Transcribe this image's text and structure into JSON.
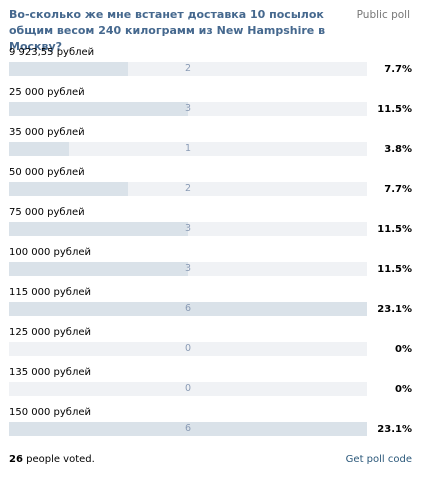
{
  "poll": {
    "question": "Во-сколько же мне встанет доставка 10 посылок общим весом 240 килограмм из New Hampshire в Москву?",
    "type_label": "Public poll",
    "options": [
      {
        "label": "9 923,55 рублей",
        "votes": "2",
        "percent": "7.7%",
        "fraction": 0.333
      },
      {
        "label": "25 000 рублей",
        "votes": "3",
        "percent": "11.5%",
        "fraction": 0.5
      },
      {
        "label": "35 000 рублей",
        "votes": "1",
        "percent": "3.8%",
        "fraction": 0.167
      },
      {
        "label": "50 000 рублей",
        "votes": "2",
        "percent": "7.7%",
        "fraction": 0.333
      },
      {
        "label": "75 000 рублей",
        "votes": "3",
        "percent": "11.5%",
        "fraction": 0.5
      },
      {
        "label": "100 000 рублей",
        "votes": "3",
        "percent": "11.5%",
        "fraction": 0.5
      },
      {
        "label": "115 000 рублей",
        "votes": "6",
        "percent": "23.1%",
        "fraction": 1.0
      },
      {
        "label": "125 000 рублей",
        "votes": "0",
        "percent": "0%",
        "fraction": 0
      },
      {
        "label": "135 000 рублей",
        "votes": "0",
        "percent": "0%",
        "fraction": 0
      },
      {
        "label": "150 000 рублей",
        "votes": "6",
        "percent": "23.1%",
        "fraction": 1.0
      }
    ],
    "voted_count": "26",
    "voted_suffix": " people voted.",
    "get_code_label": "Get poll code"
  },
  "colors": {
    "question": "#45688e",
    "bar_fill": "#dae2e9",
    "bar_track": "#f0f2f5",
    "bar_count": "#8a9bb5",
    "link": "#2b587a"
  }
}
